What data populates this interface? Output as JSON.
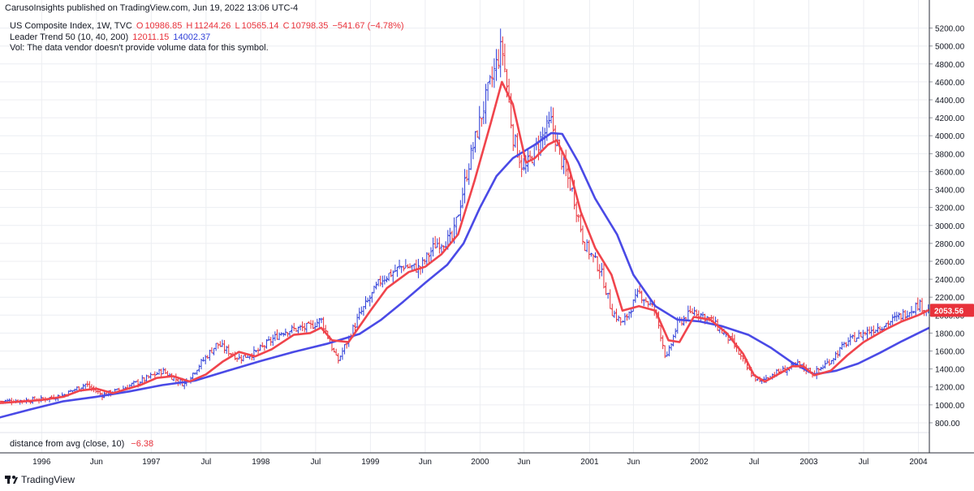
{
  "publisher_line": "CarusoInsights published on TradingView.com, Jun 19, 2022 13:06 UTC-4",
  "legend": {
    "symbol": "US Composite Index, 1W, TVC",
    "ohlc": {
      "o_label": "O",
      "o": "10986.85",
      "h_label": "H",
      "h": "11244.26",
      "l_label": "L",
      "l": "10565.14",
      "c_label": "C",
      "c": "10798.35",
      "change": "−541.67 (−4.78%)"
    },
    "indicator_name": "Leader Trend 50 (10, 40, 200)",
    "indicator_fast": "12011.15",
    "indicator_slow": "14002.37",
    "volume_note": "Vol: The data vendor doesn't provide volume data for this symbol."
  },
  "sub_indicator": {
    "label": "distance from avg (close, 10)",
    "value": "−6.38"
  },
  "last_price_tag": "2053.56",
  "branding": "TradingView",
  "colors": {
    "bar_up": "#2f3fd8",
    "bar_down": "#e8313a",
    "fast_line": "#f0444c",
    "slow_line": "#4a4ae6",
    "grid": "#eceef2",
    "price_tag_bg": "#e8313a",
    "text_red": "#e8313a",
    "text_blue": "#2f3fd8"
  },
  "chart_data": {
    "type": "ohlc_bars_with_moving_averages",
    "timeframe": "1W",
    "ylim": [
      700,
      5350
    ],
    "y_ticks": [
      800,
      1000,
      1200,
      1400,
      1600,
      1800,
      2000,
      2200,
      2400,
      2600,
      2800,
      3000,
      3200,
      3400,
      3600,
      3800,
      4000,
      4200,
      4400,
      4600,
      4800,
      5000,
      5200
    ],
    "x_ticks": [
      {
        "t": 1996.0,
        "label": "1996"
      },
      {
        "t": 1996.5,
        "label": "Jun"
      },
      {
        "t": 1997.0,
        "label": "1997"
      },
      {
        "t": 1997.5,
        "label": "Jul"
      },
      {
        "t": 1998.0,
        "label": "1998"
      },
      {
        "t": 1998.5,
        "label": "Jul"
      },
      {
        "t": 1999.0,
        "label": "1999"
      },
      {
        "t": 1999.5,
        "label": "Jun"
      },
      {
        "t": 2000.0,
        "label": "2000"
      },
      {
        "t": 2000.4,
        "label": "Jun"
      },
      {
        "t": 2001.0,
        "label": "2001"
      },
      {
        "t": 2001.4,
        "label": "Jun"
      },
      {
        "t": 2002.0,
        "label": "2002"
      },
      {
        "t": 2002.5,
        "label": "Jul"
      },
      {
        "t": 2003.0,
        "label": "2003"
      },
      {
        "t": 2003.5,
        "label": "Jul"
      },
      {
        "t": 2004.0,
        "label": "2004"
      }
    ],
    "xlim": [
      1995.62,
      2004.1
    ],
    "close_path": [
      [
        1995.62,
        1040
      ],
      [
        1995.85,
        1050
      ],
      [
        1996.0,
        1060
      ],
      [
        1996.2,
        1110
      ],
      [
        1996.4,
        1230
      ],
      [
        1996.55,
        1110
      ],
      [
        1996.7,
        1160
      ],
      [
        1996.95,
        1290
      ],
      [
        1997.1,
        1380
      ],
      [
        1997.3,
        1230
      ],
      [
        1997.45,
        1460
      ],
      [
        1997.6,
        1680
      ],
      [
        1997.8,
        1520
      ],
      [
        1997.95,
        1580
      ],
      [
        1998.2,
        1820
      ],
      [
        1998.45,
        1870
      ],
      [
        1998.55,
        1950
      ],
      [
        1998.7,
        1480
      ],
      [
        1998.9,
        2000
      ],
      [
        1999.1,
        2400
      ],
      [
        1999.3,
        2550
      ],
      [
        1999.45,
        2520
      ],
      [
        1999.6,
        2800
      ],
      [
        1999.75,
        2850
      ],
      [
        1999.9,
        3700
      ],
      [
        2000.05,
        4400
      ],
      [
        2000.2,
        5000
      ],
      [
        2000.3,
        4000
      ],
      [
        2000.4,
        3600
      ],
      [
        2000.55,
        3950
      ],
      [
        2000.65,
        4150
      ],
      [
        2000.75,
        3700
      ],
      [
        2000.85,
        3350
      ],
      [
        2000.95,
        2800
      ],
      [
        2001.1,
        2500
      ],
      [
        2001.2,
        2050
      ],
      [
        2001.3,
        1900
      ],
      [
        2001.45,
        2250
      ],
      [
        2001.6,
        2050
      ],
      [
        2001.7,
        1500
      ],
      [
        2001.8,
        1900
      ],
      [
        2001.95,
        2050
      ],
      [
        2002.1,
        1950
      ],
      [
        2002.3,
        1700
      ],
      [
        2002.45,
        1380
      ],
      [
        2002.55,
        1250
      ],
      [
        2002.65,
        1330
      ],
      [
        2002.8,
        1400
      ],
      [
        2002.9,
        1450
      ],
      [
        2003.05,
        1350
      ],
      [
        2003.2,
        1500
      ],
      [
        2003.35,
        1700
      ],
      [
        2003.5,
        1800
      ],
      [
        2003.7,
        1900
      ],
      [
        2003.85,
        2000
      ],
      [
        2004.0,
        2120
      ],
      [
        2004.1,
        2050
      ]
    ],
    "series": [
      {
        "name": "Leader Trend 50 (10, 40, 200) — fast",
        "color": "#f0444c",
        "points": [
          [
            1995.62,
            1020
          ],
          [
            1995.85,
            1040
          ],
          [
            1996.0,
            1055
          ],
          [
            1996.2,
            1090
          ],
          [
            1996.35,
            1160
          ],
          [
            1996.5,
            1180
          ],
          [
            1996.65,
            1130
          ],
          [
            1996.9,
            1220
          ],
          [
            1997.05,
            1300
          ],
          [
            1997.2,
            1320
          ],
          [
            1997.35,
            1260
          ],
          [
            1997.5,
            1340
          ],
          [
            1997.65,
            1480
          ],
          [
            1997.8,
            1590
          ],
          [
            1997.95,
            1540
          ],
          [
            1998.1,
            1620
          ],
          [
            1998.3,
            1780
          ],
          [
            1998.45,
            1800
          ],
          [
            1998.55,
            1860
          ],
          [
            1998.65,
            1720
          ],
          [
            1998.8,
            1700
          ],
          [
            1999.0,
            2050
          ],
          [
            1999.15,
            2300
          ],
          [
            1999.35,
            2480
          ],
          [
            1999.5,
            2540
          ],
          [
            1999.65,
            2680
          ],
          [
            1999.8,
            2900
          ],
          [
            1999.95,
            3500
          ],
          [
            2000.1,
            4150
          ],
          [
            2000.2,
            4600
          ],
          [
            2000.3,
            4350
          ],
          [
            2000.42,
            3700
          ],
          [
            2000.5,
            3750
          ],
          [
            2000.62,
            3900
          ],
          [
            2000.7,
            3950
          ],
          [
            2000.8,
            3700
          ],
          [
            2000.92,
            3150
          ],
          [
            2001.05,
            2750
          ],
          [
            2001.2,
            2450
          ],
          [
            2001.3,
            2050
          ],
          [
            2001.45,
            2100
          ],
          [
            2001.6,
            2050
          ],
          [
            2001.72,
            1720
          ],
          [
            2001.82,
            1700
          ],
          [
            2001.95,
            1980
          ],
          [
            2002.1,
            1950
          ],
          [
            2002.25,
            1800
          ],
          [
            2002.4,
            1570
          ],
          [
            2002.5,
            1330
          ],
          [
            2002.6,
            1260
          ],
          [
            2002.75,
            1360
          ],
          [
            2002.85,
            1430
          ],
          [
            2002.95,
            1430
          ],
          [
            2003.05,
            1330
          ],
          [
            2003.2,
            1380
          ],
          [
            2003.35,
            1550
          ],
          [
            2003.5,
            1700
          ],
          [
            2003.7,
            1840
          ],
          [
            2003.85,
            1930
          ],
          [
            2004.0,
            2000
          ],
          [
            2004.1,
            2060
          ]
        ]
      },
      {
        "name": "Leader Trend 50 (10, 40, 200) — slow",
        "color": "#4a4ae6",
        "points": [
          [
            1995.62,
            860
          ],
          [
            1995.9,
            950
          ],
          [
            1996.2,
            1040
          ],
          [
            1996.5,
            1090
          ],
          [
            1996.8,
            1150
          ],
          [
            1997.1,
            1220
          ],
          [
            1997.4,
            1270
          ],
          [
            1997.7,
            1380
          ],
          [
            1998.0,
            1490
          ],
          [
            1998.3,
            1590
          ],
          [
            1998.6,
            1680
          ],
          [
            1998.9,
            1790
          ],
          [
            1999.1,
            1950
          ],
          [
            1999.3,
            2150
          ],
          [
            1999.5,
            2360
          ],
          [
            1999.7,
            2560
          ],
          [
            1999.85,
            2800
          ],
          [
            2000.0,
            3200
          ],
          [
            2000.15,
            3550
          ],
          [
            2000.3,
            3750
          ],
          [
            2000.5,
            3900
          ],
          [
            2000.65,
            4030
          ],
          [
            2000.75,
            4020
          ],
          [
            2000.9,
            3700
          ],
          [
            2001.05,
            3300
          ],
          [
            2001.25,
            2900
          ],
          [
            2001.4,
            2450
          ],
          [
            2001.6,
            2100
          ],
          [
            2001.8,
            1950
          ],
          [
            2002.0,
            1930
          ],
          [
            2002.2,
            1880
          ],
          [
            2002.45,
            1780
          ],
          [
            2002.65,
            1640
          ],
          [
            2002.85,
            1470
          ],
          [
            2003.05,
            1340
          ],
          [
            2003.25,
            1380
          ],
          [
            2003.45,
            1460
          ],
          [
            2003.65,
            1580
          ],
          [
            2003.85,
            1710
          ],
          [
            2004.0,
            1800
          ],
          [
            2004.1,
            1860
          ]
        ]
      }
    ]
  }
}
